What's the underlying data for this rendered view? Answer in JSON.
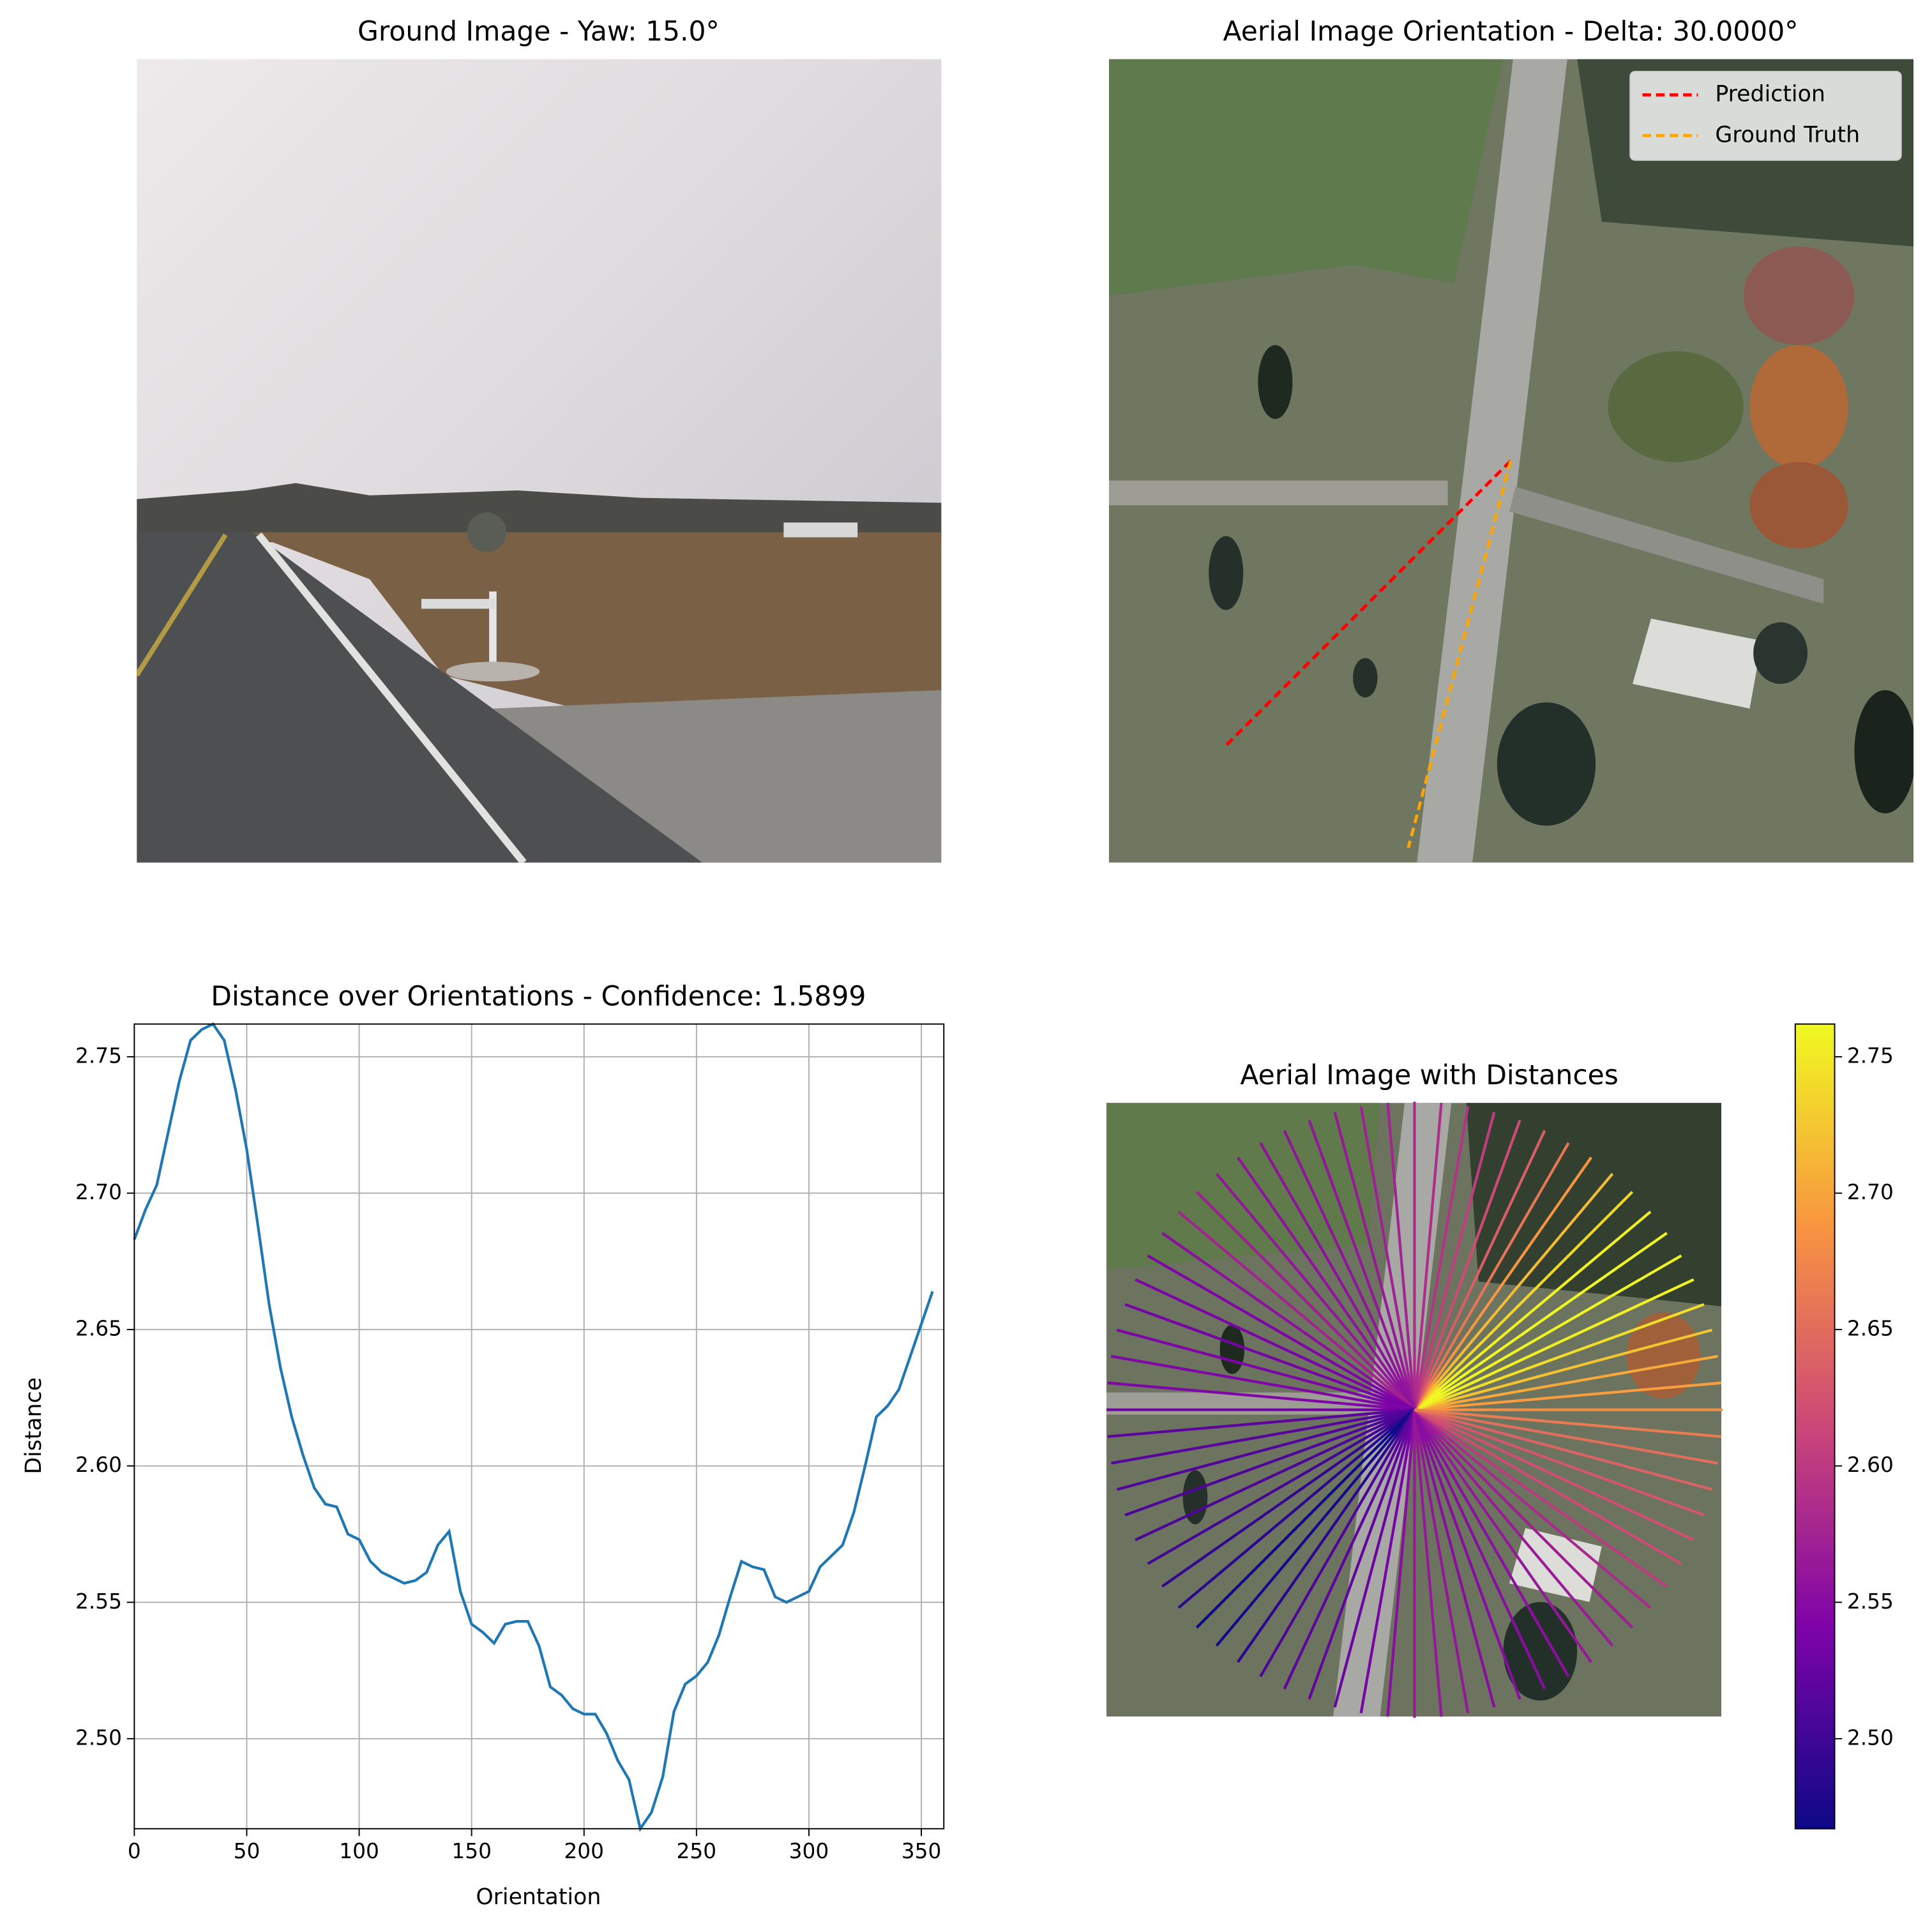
{
  "ground_image": {
    "title": "Ground Image - Yaw: 15.0°"
  },
  "aerial_orientation": {
    "title": "Aerial Image Orientation - Delta: 30.0000°",
    "legend": [
      {
        "label": "Prediction",
        "color": "#ff0000"
      },
      {
        "label": "Ground Truth",
        "color": "#ffa500"
      }
    ]
  },
  "aerial_distances": {
    "title": "Aerial Image with Distances",
    "colorbar": {
      "colormap": "plasma",
      "ylim": [
        2.467,
        2.762
      ],
      "yticks": [
        {
          "value": 2.5,
          "label": "2.50"
        },
        2.55,
        {
          "value": 2.6,
          "label": "2.60"
        },
        2.65,
        {
          "value": 2.7,
          "label": "2.70"
        },
        2.75
      ]
    }
  },
  "chart_data": {
    "type": "line",
    "title": "Distance over Orientations - Confidence: 1.5899",
    "x_label": "Orientation",
    "y_label": "Distance",
    "color": "#1f77b4",
    "grid": true,
    "x": [
      0,
      5,
      10,
      15,
      20,
      25,
      30,
      35,
      40,
      45,
      50,
      55,
      60,
      65,
      70,
      75,
      80,
      85,
      90,
      95,
      100,
      105,
      110,
      115,
      120,
      125,
      130,
      135,
      140,
      145,
      150,
      155,
      160,
      165,
      170,
      175,
      180,
      185,
      190,
      195,
      200,
      205,
      210,
      215,
      220,
      225,
      230,
      235,
      240,
      245,
      250,
      255,
      260,
      265,
      270,
      275,
      280,
      285,
      290,
      295,
      300,
      305,
      310,
      315,
      320,
      325,
      330,
      335,
      340,
      345,
      350,
      355
    ],
    "values": [
      2.683,
      2.694,
      2.703,
      2.722,
      2.741,
      2.756,
      2.76,
      2.762,
      2.756,
      2.738,
      2.716,
      2.688,
      2.659,
      2.636,
      2.618,
      2.604,
      2.592,
      2.586,
      2.585,
      2.575,
      2.573,
      2.565,
      2.561,
      2.559,
      2.557,
      2.558,
      2.561,
      2.571,
      2.576,
      2.554,
      2.542,
      2.539,
      2.535,
      2.542,
      2.543,
      2.543,
      2.534,
      2.519,
      2.516,
      2.511,
      2.509,
      2.509,
      2.502,
      2.492,
      2.485,
      2.467,
      2.473,
      2.486,
      2.51,
      2.52,
      2.523,
      2.528,
      2.538,
      2.552,
      2.565,
      2.563,
      2.562,
      2.552,
      2.55,
      2.552,
      2.554,
      2.563,
      2.567,
      2.571,
      2.583,
      2.6,
      2.618,
      2.622,
      2.628,
      2.64,
      2.652,
      2.664
    ],
    "xlim": [
      0,
      360
    ],
    "ylim": [
      2.467,
      2.762
    ],
    "xticks": [
      0,
      50,
      100,
      150,
      200,
      250,
      300,
      350
    ],
    "yticks": [
      {
        "value": 2.5,
        "label": "2.50"
      },
      2.55,
      {
        "value": 2.6,
        "label": "2.60"
      },
      2.65,
      {
        "value": 2.7,
        "label": "2.70"
      },
      2.75
    ]
  }
}
